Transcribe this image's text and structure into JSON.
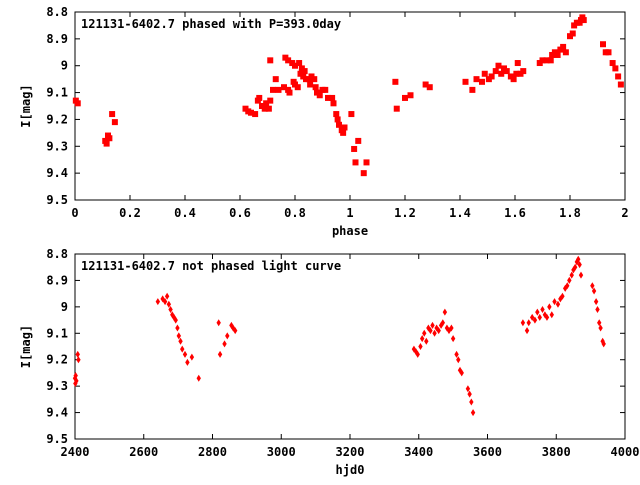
{
  "chart_data": [
    {
      "type": "scatter",
      "title": "121131-6402.7 phased with P=393.0day",
      "xlabel": "phase",
      "ylabel": "I[mag]",
      "xlim": [
        0,
        2
      ],
      "ylim": [
        9.5,
        8.8
      ],
      "y_inverted": true,
      "grid": false,
      "marker": "filled square",
      "color": "#ff0000",
      "xticks": [
        0,
        0.2,
        0.4,
        0.6,
        0.8,
        1,
        1.2,
        1.4,
        1.6,
        1.8,
        2
      ],
      "xtick_labels": [
        "0",
        "0.2",
        "0.4",
        "0.6",
        "0.8",
        "1",
        "1.2",
        "1.4",
        "1.6",
        "1.8",
        "2"
      ],
      "yticks": [
        8.8,
        8.9,
        9.0,
        9.1,
        9.2,
        9.3,
        9.4,
        9.5
      ],
      "ytick_labels": [
        "8.8",
        "8.9",
        "9",
        "9.1",
        "9.2",
        "9.3",
        "9.4",
        "9.5"
      ],
      "points": [
        [
          0.003,
          9.13
        ],
        [
          0.01,
          9.14
        ],
        [
          0.11,
          9.28
        ],
        [
          0.115,
          9.29
        ],
        [
          0.12,
          9.26
        ],
        [
          0.125,
          9.27
        ],
        [
          0.135,
          9.18
        ],
        [
          0.145,
          9.21
        ],
        [
          0.62,
          9.16
        ],
        [
          0.63,
          9.17
        ],
        [
          0.64,
          9.175
        ],
        [
          0.655,
          9.18
        ],
        [
          0.665,
          9.13
        ],
        [
          0.67,
          9.12
        ],
        [
          0.68,
          9.15
        ],
        [
          0.69,
          9.16
        ],
        [
          0.695,
          9.14
        ],
        [
          0.705,
          9.16
        ],
        [
          0.71,
          9.13
        ],
        [
          0.72,
          9.09
        ],
        [
          0.73,
          9.05
        ],
        [
          0.74,
          9.09
        ],
        [
          0.76,
          9.08
        ],
        [
          0.775,
          9.09
        ],
        [
          0.78,
          9.1
        ],
        [
          0.795,
          9.06
        ],
        [
          0.8,
          9.07
        ],
        [
          0.81,
          9.08
        ],
        [
          0.82,
          9.03
        ],
        [
          0.83,
          9.04
        ],
        [
          0.84,
          9.05
        ],
        [
          0.85,
          9.05
        ],
        [
          0.855,
          9.07
        ],
        [
          0.86,
          9.04
        ],
        [
          0.87,
          9.05
        ],
        [
          0.875,
          9.08
        ],
        [
          0.88,
          9.1
        ],
        [
          0.89,
          9.11
        ],
        [
          0.9,
          9.09
        ],
        [
          0.91,
          9.09
        ],
        [
          0.92,
          9.12
        ],
        [
          0.935,
          9.12
        ],
        [
          0.94,
          9.14
        ],
        [
          0.95,
          9.18
        ],
        [
          0.955,
          9.2
        ],
        [
          0.96,
          9.22
        ],
        [
          0.97,
          9.24
        ],
        [
          0.975,
          9.25
        ],
        [
          0.98,
          9.23
        ],
        [
          0.71,
          8.98
        ],
        [
          0.765,
          8.97
        ],
        [
          0.775,
          8.98
        ],
        [
          0.79,
          8.99
        ],
        [
          0.8,
          9.0
        ],
        [
          0.815,
          8.99
        ],
        [
          0.825,
          9.01
        ],
        [
          0.835,
          9.02
        ],
        [
          1.005,
          9.18
        ],
        [
          1.015,
          9.31
        ],
        [
          1.02,
          9.36
        ],
        [
          1.03,
          9.28
        ],
        [
          1.05,
          9.4
        ],
        [
          1.06,
          9.36
        ],
        [
          1.165,
          9.06
        ],
        [
          1.17,
          9.16
        ],
        [
          1.2,
          9.12
        ],
        [
          1.22,
          9.11
        ],
        [
          1.275,
          9.07
        ],
        [
          1.29,
          9.08
        ],
        [
          1.42,
          9.06
        ],
        [
          1.445,
          9.09
        ],
        [
          1.46,
          9.05
        ],
        [
          1.48,
          9.06
        ],
        [
          1.49,
          9.03
        ],
        [
          1.505,
          9.05
        ],
        [
          1.515,
          9.04
        ],
        [
          1.53,
          9.02
        ],
        [
          1.54,
          9.0
        ],
        [
          1.55,
          9.03
        ],
        [
          1.56,
          9.01
        ],
        [
          1.57,
          9.02
        ],
        [
          1.585,
          9.04
        ],
        [
          1.595,
          9.05
        ],
        [
          1.605,
          9.03
        ],
        [
          1.61,
          8.99
        ],
        [
          1.62,
          9.03
        ],
        [
          1.63,
          9.02
        ],
        [
          1.69,
          8.99
        ],
        [
          1.7,
          8.98
        ],
        [
          1.715,
          8.98
        ],
        [
          1.73,
          8.98
        ],
        [
          1.735,
          8.96
        ],
        [
          1.745,
          8.95
        ],
        [
          1.755,
          8.96
        ],
        [
          1.765,
          8.94
        ],
        [
          1.775,
          8.93
        ],
        [
          1.785,
          8.95
        ],
        [
          1.8,
          8.89
        ],
        [
          1.81,
          8.88
        ],
        [
          1.815,
          8.85
        ],
        [
          1.825,
          8.84
        ],
        [
          1.835,
          8.84
        ],
        [
          1.84,
          8.83
        ],
        [
          1.845,
          8.82
        ],
        [
          1.85,
          8.83
        ],
        [
          1.92,
          8.92
        ],
        [
          1.93,
          8.95
        ],
        [
          1.94,
          8.95
        ],
        [
          1.955,
          8.99
        ],
        [
          1.965,
          9.01
        ],
        [
          1.975,
          9.04
        ],
        [
          1.985,
          9.07
        ]
      ]
    },
    {
      "type": "scatter",
      "title": "121131-6402.7 not phased light curve",
      "xlabel": "hjd0",
      "ylabel": "I[mag]",
      "xlim": [
        2400,
        4000
      ],
      "ylim": [
        9.5,
        8.8
      ],
      "y_inverted": true,
      "grid": false,
      "marker": "filled diamond",
      "color": "#ff0000",
      "xticks": [
        2400,
        2600,
        2800,
        3000,
        3200,
        3400,
        3600,
        3800,
        4000
      ],
      "xtick_labels": [
        "2400",
        "2600",
        "2800",
        "3000",
        "3200",
        "3400",
        "3600",
        "3800",
        "4000"
      ],
      "yticks": [
        8.8,
        8.9,
        9.0,
        9.1,
        9.2,
        9.3,
        9.4,
        9.5
      ],
      "ytick_labels": [
        "8.8",
        "8.9",
        "9",
        "9.1",
        "9.2",
        "9.3",
        "9.4",
        "9.5"
      ],
      "points": [
        [
          2400,
          9.27
        ],
        [
          2401,
          9.29
        ],
        [
          2402,
          9.26
        ],
        [
          2404,
          9.28
        ],
        [
          2408,
          9.18
        ],
        [
          2410,
          9.2
        ],
        [
          2641,
          8.98
        ],
        [
          2655,
          8.97
        ],
        [
          2662,
          8.98
        ],
        [
          2668,
          8.96
        ],
        [
          2673,
          8.99
        ],
        [
          2678,
          9.01
        ],
        [
          2683,
          9.03
        ],
        [
          2688,
          9.04
        ],
        [
          2693,
          9.05
        ],
        [
          2698,
          9.08
        ],
        [
          2702,
          9.11
        ],
        [
          2707,
          9.13
        ],
        [
          2712,
          9.16
        ],
        [
          2720,
          9.18
        ],
        [
          2727,
          9.21
        ],
        [
          2740,
          9.19
        ],
        [
          2760,
          9.27
        ],
        [
          2818,
          9.06
        ],
        [
          2822,
          9.18
        ],
        [
          2835,
          9.14
        ],
        [
          2843,
          9.11
        ],
        [
          2855,
          9.07
        ],
        [
          2860,
          9.08
        ],
        [
          2866,
          9.09
        ],
        [
          3386,
          9.16
        ],
        [
          3392,
          9.17
        ],
        [
          3397,
          9.18
        ],
        [
          3405,
          9.15
        ],
        [
          3410,
          9.12
        ],
        [
          3416,
          9.1
        ],
        [
          3422,
          9.13
        ],
        [
          3428,
          9.08
        ],
        [
          3434,
          9.09
        ],
        [
          3440,
          9.07
        ],
        [
          3446,
          9.1
        ],
        [
          3452,
          9.08
        ],
        [
          3458,
          9.09
        ],
        [
          3465,
          9.07
        ],
        [
          3470,
          9.06
        ],
        [
          3476,
          9.02
        ],
        [
          3482,
          9.08
        ],
        [
          3488,
          9.09
        ],
        [
          3495,
          9.08
        ],
        [
          3500,
          9.12
        ],
        [
          3510,
          9.18
        ],
        [
          3515,
          9.2
        ],
        [
          3520,
          9.24
        ],
        [
          3525,
          9.25
        ],
        [
          3543,
          9.31
        ],
        [
          3548,
          9.33
        ],
        [
          3553,
          9.36
        ],
        [
          3558,
          9.4
        ],
        [
          3703,
          9.06
        ],
        [
          3715,
          9.09
        ],
        [
          3720,
          9.06
        ],
        [
          3730,
          9.04
        ],
        [
          3738,
          9.05
        ],
        [
          3745,
          9.02
        ],
        [
          3752,
          9.04
        ],
        [
          3760,
          9.01
        ],
        [
          3767,
          9.03
        ],
        [
          3773,
          9.04
        ],
        [
          3780,
          9.0
        ],
        [
          3787,
          9.03
        ],
        [
          3795,
          8.98
        ],
        [
          3805,
          8.99
        ],
        [
          3812,
          8.97
        ],
        [
          3818,
          8.96
        ],
        [
          3826,
          8.93
        ],
        [
          3832,
          8.92
        ],
        [
          3838,
          8.9
        ],
        [
          3845,
          8.88
        ],
        [
          3850,
          8.86
        ],
        [
          3855,
          8.85
        ],
        [
          3860,
          8.83
        ],
        [
          3864,
          8.82
        ],
        [
          3868,
          8.84
        ],
        [
          3872,
          8.88
        ],
        [
          3905,
          8.92
        ],
        [
          3910,
          8.94
        ],
        [
          3916,
          8.98
        ],
        [
          3920,
          9.01
        ],
        [
          3925,
          9.06
        ],
        [
          3929,
          9.08
        ],
        [
          3935,
          9.13
        ],
        [
          3938,
          9.14
        ]
      ]
    }
  ]
}
